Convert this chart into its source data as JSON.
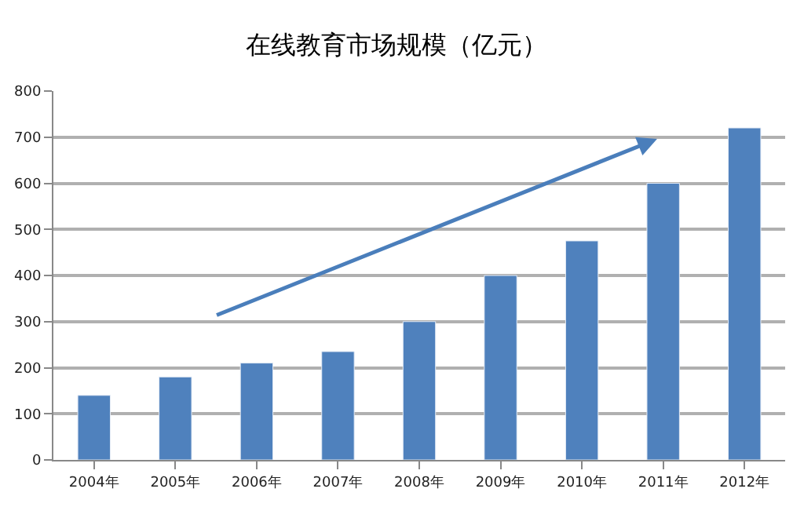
{
  "chart_data": {
    "type": "bar",
    "title": "在线教育市场规模（亿元）",
    "categories": [
      "2004年",
      "2005年",
      "2006年",
      "2007年",
      "2008年",
      "2009年",
      "2010年",
      "2011年",
      "2012年"
    ],
    "values": [
      140,
      180,
      210,
      235,
      300,
      400,
      475,
      600,
      720
    ],
    "color": "#4f81bd",
    "ylim": [
      0,
      800
    ],
    "yticks": [
      0,
      100,
      200,
      300,
      400,
      500,
      600,
      700,
      800
    ],
    "grid": "y",
    "legend": false
  }
}
